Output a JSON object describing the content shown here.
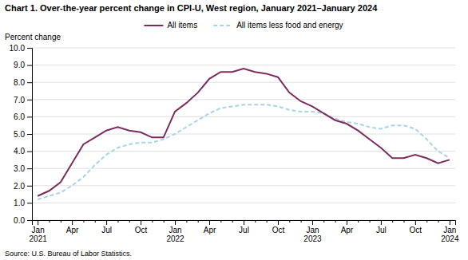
{
  "chart_data": {
    "type": "line",
    "title": "Chart 1. Over-the-year percent change in CPI-U, West region, January 2021–January 2024",
    "ylabel": "Percent change",
    "source": "Source: U.S. Bureau of Labor Statistics.",
    "categories": [
      "Jan\n2021",
      null,
      null,
      "Apr",
      null,
      null,
      "Jul",
      null,
      null,
      "Oct",
      null,
      null,
      "Jan\n2022",
      null,
      null,
      "Apr",
      null,
      null,
      "Jul",
      null,
      null,
      "Oct",
      null,
      null,
      "Jan\n2023",
      null,
      null,
      "Apr",
      null,
      null,
      "Jul",
      null,
      null,
      "Oct",
      null,
      null,
      "Jan\n2024"
    ],
    "series": [
      {
        "name": "All items",
        "color": "#7B2D5E",
        "line_style": "solid",
        "values": [
          1.4,
          1.7,
          2.2,
          3.3,
          4.4,
          4.8,
          5.2,
          5.4,
          5.2,
          5.1,
          4.8,
          4.8,
          6.3,
          6.8,
          7.4,
          8.2,
          8.6,
          8.6,
          8.8,
          8.6,
          8.5,
          8.3,
          7.4,
          6.9,
          6.6,
          6.2,
          5.8,
          5.6,
          5.2,
          4.7,
          4.2,
          3.6,
          3.6,
          3.8,
          3.6,
          3.3,
          3.5
        ]
      },
      {
        "name": "All items less food and energy",
        "color": "#A8D4EA",
        "line_style": "dashed",
        "values": [
          1.2,
          1.4,
          1.6,
          2.0,
          2.5,
          3.2,
          3.8,
          4.2,
          4.4,
          4.5,
          4.5,
          4.7,
          5.0,
          5.4,
          5.8,
          6.2,
          6.5,
          6.6,
          6.7,
          6.7,
          6.7,
          6.6,
          6.4,
          6.3,
          6.3,
          6.2,
          5.9,
          5.7,
          5.6,
          5.4,
          5.3,
          5.5,
          5.5,
          5.3,
          4.7,
          4.0,
          3.6
        ]
      }
    ],
    "ylim": [
      0.0,
      10.0
    ],
    "yticks": [
      {
        "value": 0,
        "label": "0.0"
      },
      {
        "value": 1,
        "label": "1.0"
      },
      {
        "value": 2,
        "label": "2.0"
      },
      {
        "value": 3,
        "label": "3.0"
      },
      {
        "value": 4,
        "label": "4.0"
      },
      {
        "value": 5,
        "label": "5.0"
      },
      {
        "value": 6,
        "label": "6.0"
      },
      {
        "value": 7,
        "label": "7.0"
      },
      {
        "value": 8,
        "label": "8.0"
      },
      {
        "value": 9,
        "label": "9.0"
      },
      {
        "value": 10,
        "label": "10.0"
      }
    ],
    "grid": true,
    "legend": "top"
  }
}
